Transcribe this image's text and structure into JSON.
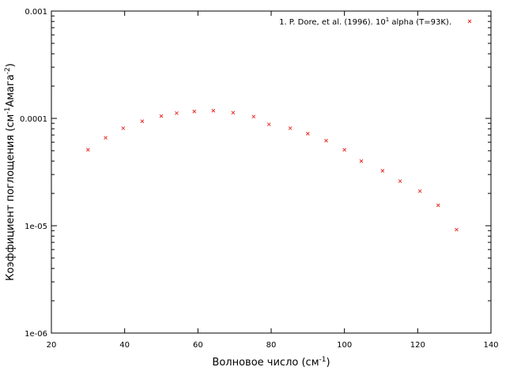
{
  "chart_data": {
    "type": "scatter",
    "title": "",
    "xlabel": "Волновое число (см",
    "xlabel_sup": "-1",
    "xlabel_suffix": ")",
    "ylabel_parts": [
      "Коэффициент поглощения (см",
      "-1",
      "Амага",
      "-2",
      ")"
    ],
    "xlim": [
      20,
      140
    ],
    "ylim": [
      1e-06,
      0.001
    ],
    "y_scale": "log",
    "x_ticks": [
      20,
      40,
      60,
      80,
      100,
      120,
      140
    ],
    "x_tick_labels": [
      "20",
      "40",
      "60",
      "80",
      "100",
      "120",
      "140"
    ],
    "y_ticks": [
      1e-06,
      1e-05,
      0.0001,
      0.001
    ],
    "y_tick_labels": [
      "1e-06",
      "1e-05",
      "0.0001",
      "0.001"
    ],
    "grid": false,
    "legend_position": "top-right",
    "marker": "x",
    "color": "#e8302a",
    "series": [
      {
        "name": "1. P. Dore, et al. (1996). 10",
        "name_sup": "1",
        "name_suffix": " alpha (T=93K).",
        "points": [
          {
            "x": 30.0,
            "y": 5.1e-05
          },
          {
            "x": 34.8,
            "y": 6.6e-05
          },
          {
            "x": 39.6,
            "y": 8.1e-05
          },
          {
            "x": 44.8,
            "y": 9.4e-05
          },
          {
            "x": 50.0,
            "y": 0.000105
          },
          {
            "x": 54.2,
            "y": 0.000112
          },
          {
            "x": 59.0,
            "y": 0.000116
          },
          {
            "x": 64.2,
            "y": 0.000118
          },
          {
            "x": 69.6,
            "y": 0.000113
          },
          {
            "x": 75.2,
            "y": 0.000104
          },
          {
            "x": 79.4,
            "y": 8.8e-05
          },
          {
            "x": 85.2,
            "y": 8.1e-05
          },
          {
            "x": 90.0,
            "y": 7.2e-05
          },
          {
            "x": 95.0,
            "y": 6.2e-05
          },
          {
            "x": 100.0,
            "y": 5.1e-05
          },
          {
            "x": 104.6,
            "y": 4e-05
          },
          {
            "x": 110.4,
            "y": 3.25e-05
          },
          {
            "x": 115.2,
            "y": 2.6e-05
          },
          {
            "x": 120.6,
            "y": 2.1e-05
          },
          {
            "x": 125.6,
            "y": 1.55e-05
          },
          {
            "x": 130.6,
            "y": 9.2e-06
          }
        ]
      }
    ]
  }
}
